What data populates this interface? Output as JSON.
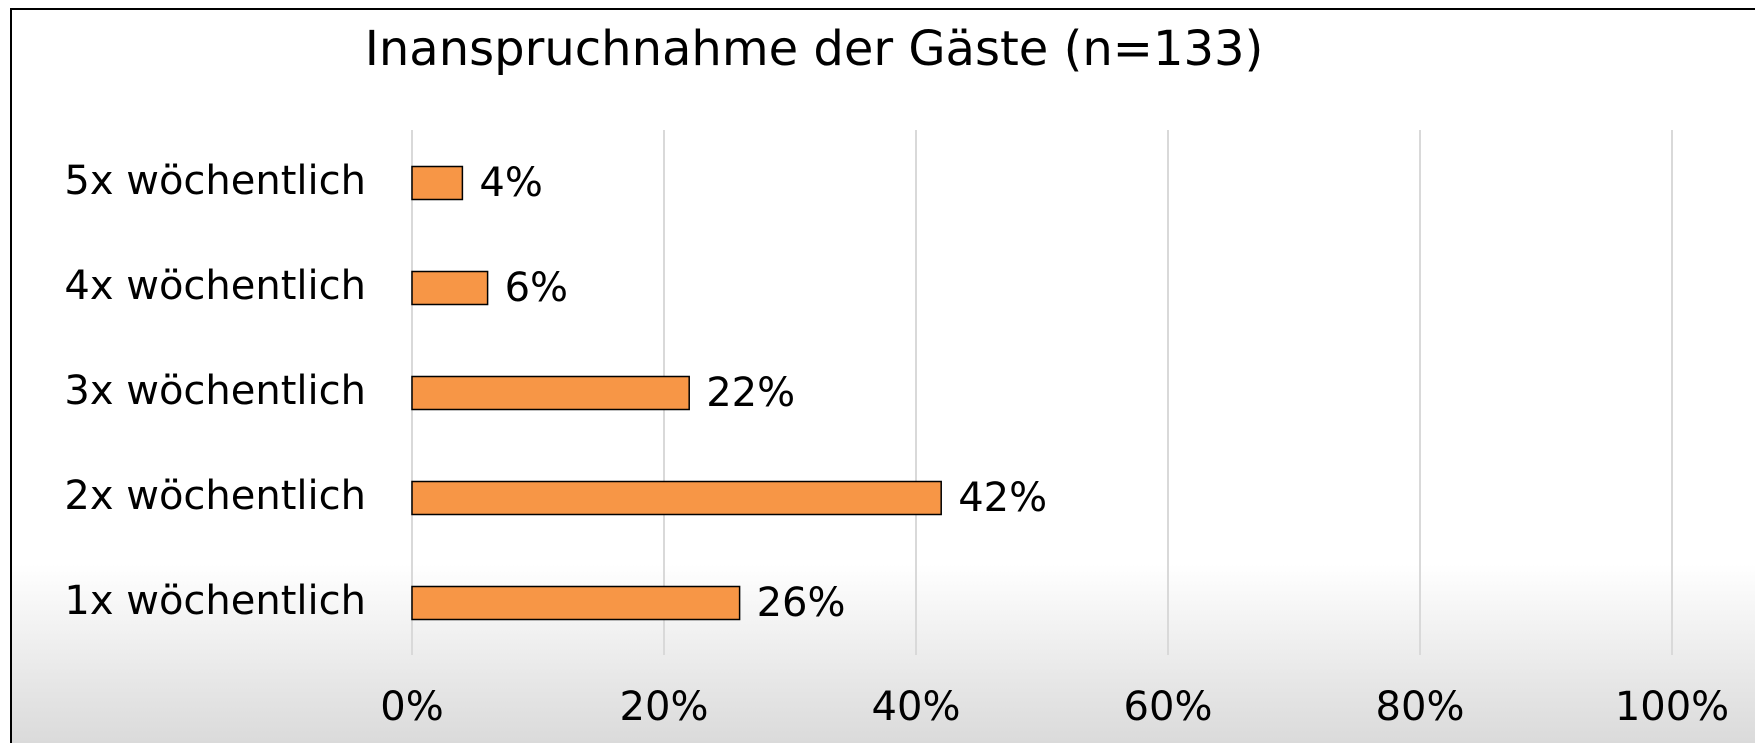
{
  "chart_data": {
    "type": "bar",
    "orientation": "horizontal",
    "title": "Inanspruchnahme der Gäste (n=133)",
    "categories": [
      "5x wöchentlich",
      "4x wöchentlich",
      "3x wöchentlich",
      "2x wöchentlich",
      "1x wöchentlich"
    ],
    "values": [
      4,
      6,
      22,
      42,
      26
    ],
    "value_labels": [
      "4%",
      "6%",
      "22%",
      "42%",
      "26%"
    ],
    "color": "#f79646",
    "xlim": [
      0,
      100
    ],
    "xticks": [
      {
        "value": 0,
        "label": "0%"
      },
      {
        "value": 20,
        "label": "20%"
      },
      {
        "value": 40,
        "label": "40%"
      },
      {
        "value": 60,
        "label": "60%"
      },
      {
        "value": 80,
        "label": "80%"
      },
      {
        "value": 100,
        "label": "100%"
      }
    ],
    "grid": true
  }
}
